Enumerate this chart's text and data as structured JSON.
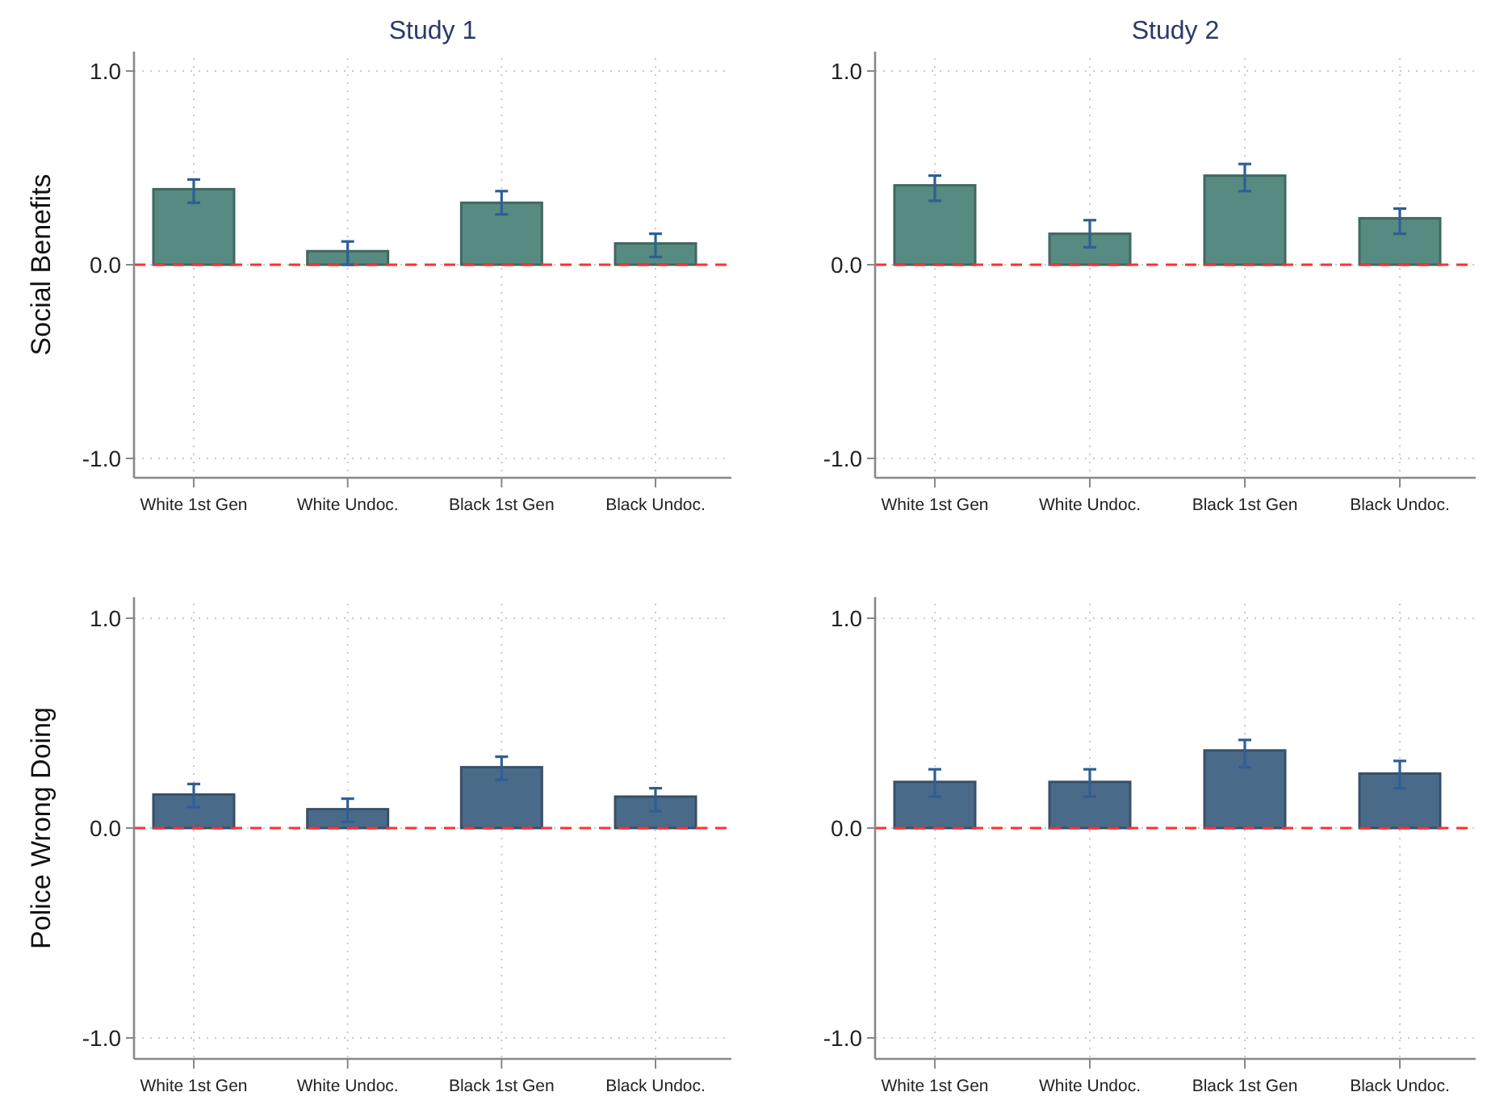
{
  "chart_data": [
    {
      "type": "bar",
      "title": "Study 1",
      "ylabel": "Social Benefits",
      "categories": [
        "White 1st Gen",
        "White Undoc.",
        "Black 1st Gen",
        "Black Undoc."
      ],
      "values": [
        0.39,
        0.07,
        0.32,
        0.11
      ],
      "errors": [
        [
          0.32,
          0.44
        ],
        [
          0.0,
          0.12
        ],
        [
          0.26,
          0.38
        ],
        [
          0.04,
          0.16
        ]
      ],
      "color": "#578a80",
      "ylim": [
        -1.1,
        1.1
      ],
      "yticks": [
        {
          "value": -1,
          "label": "-1.0"
        },
        {
          "value": 0,
          "label": "0.0"
        },
        {
          "value": 1,
          "label": "1.0"
        }
      ],
      "grid": true,
      "ref_lines": [
        {
          "axis": "y",
          "value": 0,
          "color": "#ff3030",
          "line_style": "dashed"
        }
      ]
    },
    {
      "type": "bar",
      "title": "Study 2",
      "categories": [
        "White 1st Gen",
        "White Undoc.",
        "Black 1st Gen",
        "Black Undoc."
      ],
      "values": [
        0.41,
        0.16,
        0.46,
        0.24
      ],
      "errors": [
        [
          0.33,
          0.46
        ],
        [
          0.09,
          0.23
        ],
        [
          0.38,
          0.52
        ],
        [
          0.16,
          0.29
        ]
      ],
      "color": "#578a80",
      "ylim": [
        -1.1,
        1.1
      ],
      "yticks": [
        {
          "value": -1,
          "label": "-1.0"
        },
        {
          "value": 0,
          "label": "0.0"
        },
        {
          "value": 1,
          "label": "1.0"
        }
      ],
      "grid": true,
      "ref_lines": [
        {
          "axis": "y",
          "value": 0,
          "color": "#ff3030",
          "line_style": "dashed"
        }
      ]
    },
    {
      "type": "bar",
      "ylabel": "Police Wrong Doing",
      "categories": [
        "White 1st Gen",
        "White Undoc.",
        "Black 1st Gen",
        "Black Undoc."
      ],
      "values": [
        0.16,
        0.09,
        0.29,
        0.15
      ],
      "errors": [
        [
          0.1,
          0.21
        ],
        [
          0.03,
          0.14
        ],
        [
          0.23,
          0.34
        ],
        [
          0.08,
          0.19
        ]
      ],
      "color": "#4a6a8a",
      "ylim": [
        -1.1,
        1.1
      ],
      "yticks": [
        {
          "value": -1,
          "label": "-1.0"
        },
        {
          "value": 0,
          "label": "0.0"
        },
        {
          "value": 1,
          "label": "1.0"
        }
      ],
      "grid": true,
      "ref_lines": [
        {
          "axis": "y",
          "value": 0,
          "color": "#ff3030",
          "line_style": "dashed"
        }
      ]
    },
    {
      "type": "bar",
      "categories": [
        "White 1st Gen",
        "White Undoc.",
        "Black 1st Gen",
        "Black Undoc."
      ],
      "values": [
        0.22,
        0.22,
        0.37,
        0.26
      ],
      "errors": [
        [
          0.15,
          0.28
        ],
        [
          0.15,
          0.28
        ],
        [
          0.29,
          0.42
        ],
        [
          0.19,
          0.32
        ]
      ],
      "color": "#4a6a8a",
      "ylim": [
        -1.1,
        1.1
      ],
      "yticks": [
        {
          "value": -1,
          "label": "-1.0"
        },
        {
          "value": 0,
          "label": "0.0"
        },
        {
          "value": 1,
          "label": "1.0"
        }
      ],
      "grid": true,
      "ref_lines": [
        {
          "axis": "y",
          "value": 0,
          "color": "#ff3030",
          "line_style": "dashed"
        }
      ]
    }
  ]
}
